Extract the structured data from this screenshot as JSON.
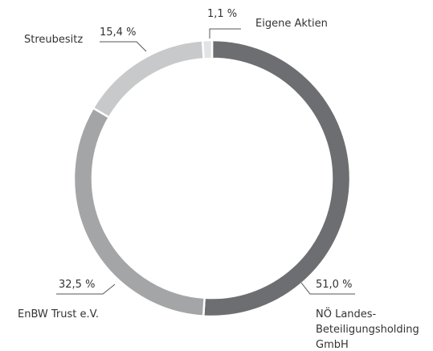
{
  "chart_data": {
    "type": "donut",
    "categories": [
      "NÖ Landes-\nBeteiligungsholding\nGmbH",
      "EnBW Trust e.V.",
      "Streubesitz",
      "Eigene Aktien"
    ],
    "values": [
      51.0,
      32.5,
      15.4,
      1.1
    ],
    "value_labels": [
      "51,0 %",
      "32,5 %",
      "15,4 %",
      "1,1 %"
    ],
    "colors": [
      "#6d6e71",
      "#a4a5a7",
      "#c8c9cb",
      "#e2e3e4"
    ]
  }
}
